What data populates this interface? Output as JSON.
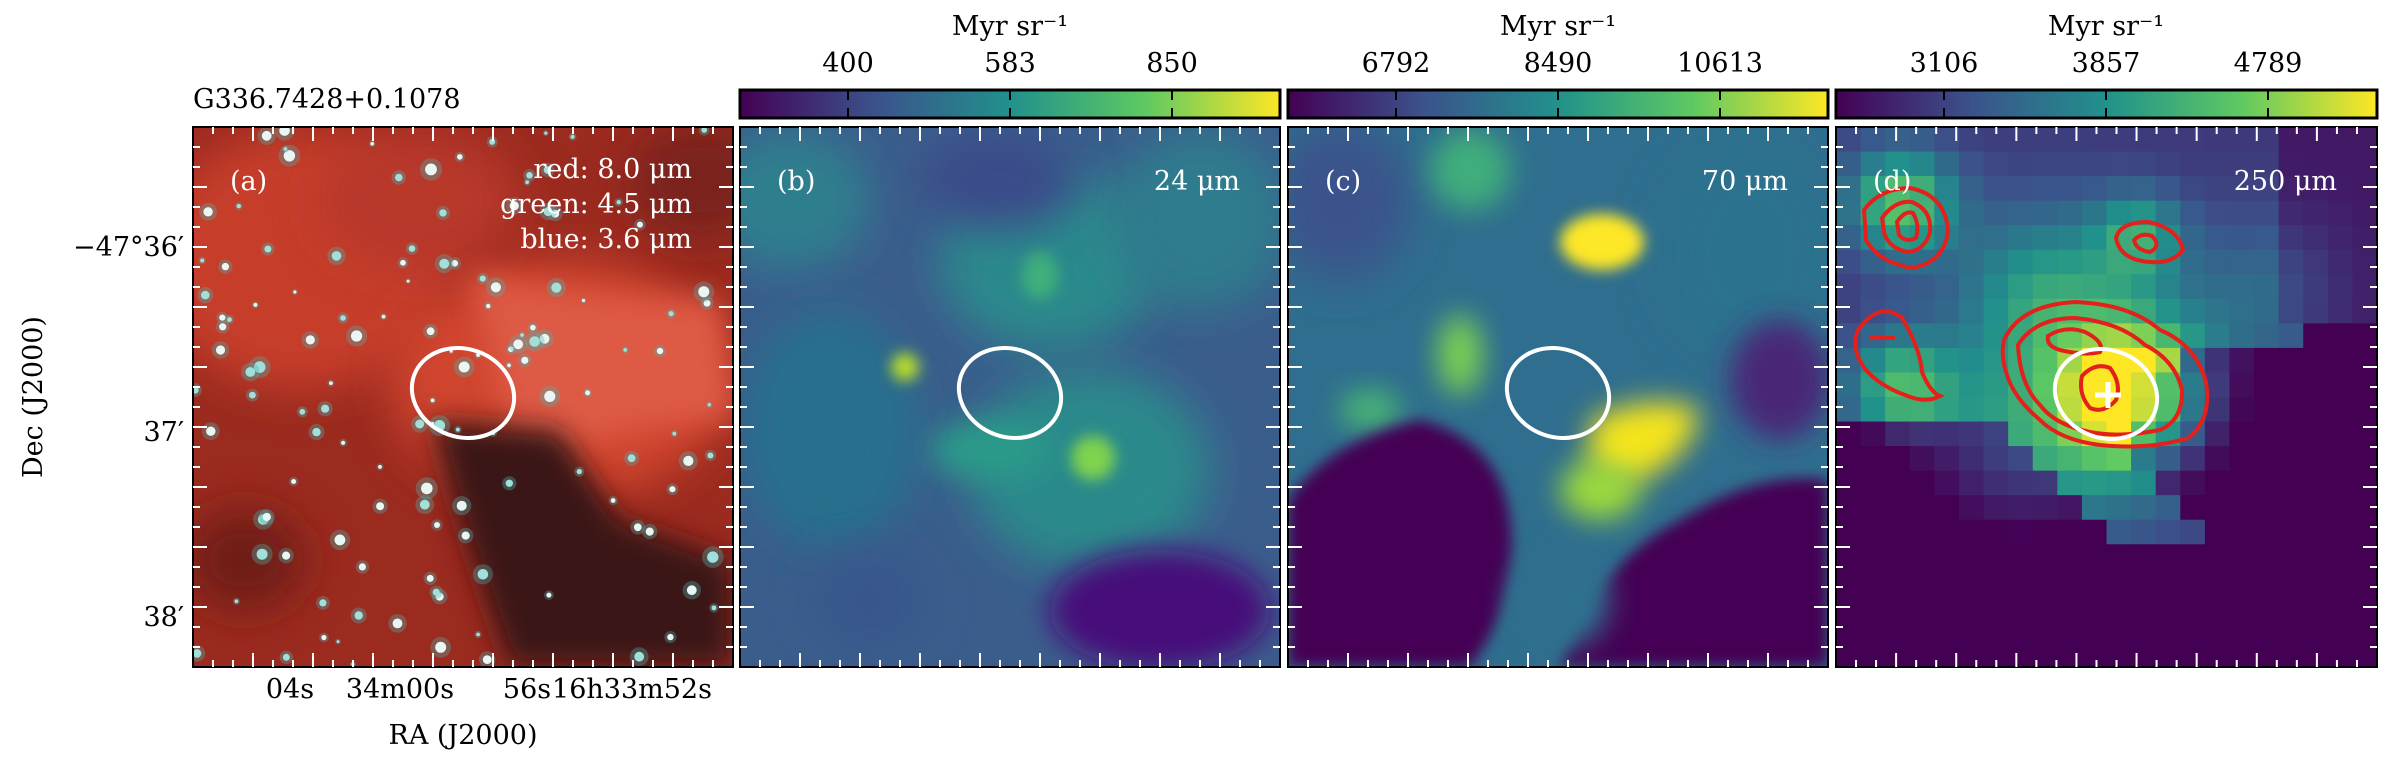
{
  "figure": {
    "source_name": "G336.7428+0.1078",
    "x_axis_label": "RA (J2000)",
    "y_axis_label": "Dec (J2000)",
    "ra_ticks": [
      "04s",
      "34m00s",
      "56s",
      "16h33m52s"
    ],
    "dec_ticks": [
      "−47°36′",
      "37′",
      "38′"
    ],
    "colorbar_unit": "Myr sr⁻¹"
  },
  "panels": [
    {
      "id": "a",
      "tag": "(a)",
      "legend": [
        "red: 8.0 μm",
        "green: 4.5 μm",
        "blue: 3.6 μm"
      ],
      "colormap": "rgb-composite",
      "colors": {
        "red": "#c0392b",
        "bright": "#e05a44",
        "dark": "#2a1411"
      }
    },
    {
      "id": "b",
      "tag": "(b)",
      "wavelength": "24 μm",
      "colormap": "viridis",
      "colorbar_ticks": [
        "400",
        "583",
        "850"
      ]
    },
    {
      "id": "c",
      "tag": "(c)",
      "wavelength": "70 μm",
      "colormap": "viridis",
      "colorbar_ticks": [
        "6792",
        "8490",
        "10613"
      ]
    },
    {
      "id": "d",
      "tag": "(d)",
      "wavelength": "250 μm",
      "colormap": "viridis",
      "colorbar_ticks": [
        "3106",
        "3857",
        "4789"
      ],
      "contour_color": "#e3201b",
      "marker": "plus-marker"
    }
  ],
  "colors": {
    "viridis": [
      "#440154",
      "#3b528b",
      "#21918c",
      "#5ec962",
      "#fde725"
    ],
    "ellipse": "#ffffff"
  }
}
